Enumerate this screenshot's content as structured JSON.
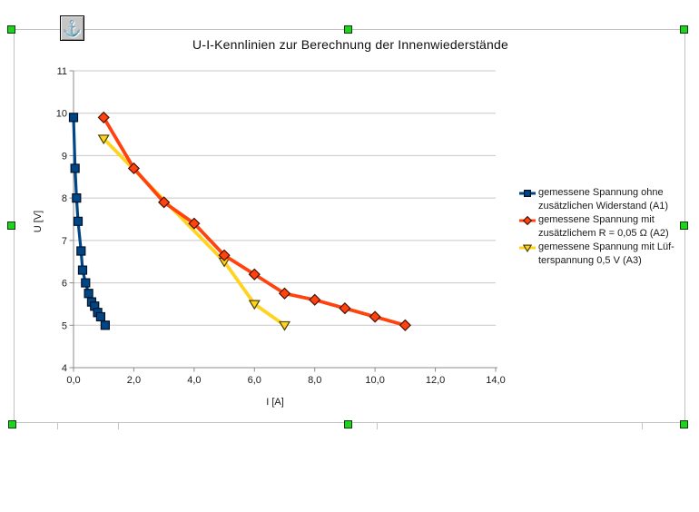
{
  "chart_object": {
    "selection_handle_color": "#1ed31e",
    "anchor_icon_glyph": "⚓",
    "background": "#ffffff",
    "axis_color": "#8c8c8c",
    "grid_color": "#c8c8c8",
    "text_color": "#1a1a1a"
  },
  "chart_data": {
    "type": "line",
    "title": "U-I-Kennlinien zur Berechnung der Innenwiederstände",
    "xlabel": "I [A]",
    "ylabel": "U [V]",
    "xlim": [
      0,
      14
    ],
    "ylim": [
      4,
      11
    ],
    "x_ticks": [
      "0,0",
      "2,0",
      "4,0",
      "6,0",
      "8,0",
      "10,0",
      "12,0",
      "14,0"
    ],
    "x_tick_values": [
      0,
      2,
      4,
      6,
      8,
      10,
      12,
      14
    ],
    "y_ticks": [
      "4",
      "5",
      "6",
      "7",
      "8",
      "9",
      "10",
      "11"
    ],
    "y_tick_values": [
      4,
      5,
      6,
      7,
      8,
      9,
      10,
      11
    ],
    "grid": "horizontal-only",
    "legend_position": "right",
    "series": [
      {
        "name": "gemessene Spannung ohne zusätzlichen Widerstand (A1)",
        "legend_lines": [
          "gemessene Spannung ohne",
          "zusätzlichen Widerstand (A1)"
        ],
        "color": "#004586",
        "marker": "square",
        "marker_border": "#001228",
        "points": [
          [
            0.0,
            9.9
          ],
          [
            0.05,
            8.7
          ],
          [
            0.1,
            8.0
          ],
          [
            0.15,
            7.45
          ],
          [
            0.25,
            6.75
          ],
          [
            0.3,
            6.3
          ],
          [
            0.4,
            6.0
          ],
          [
            0.5,
            5.75
          ],
          [
            0.6,
            5.55
          ],
          [
            0.7,
            5.45
          ],
          [
            0.8,
            5.3
          ],
          [
            0.9,
            5.2
          ],
          [
            1.05,
            5.0
          ]
        ]
      },
      {
        "name": "gemessene Spannung mit zusätzlichem R = 0,05 Ω (A2)",
        "legend_lines": [
          "gemessene Spannung mit",
          "zusätzlichem R = 0,05 Ω (A2)"
        ],
        "color": "#FF420E",
        "marker": "diamond",
        "marker_border": "#4a1203",
        "points": [
          [
            1,
            9.9
          ],
          [
            2,
            8.7
          ],
          [
            3,
            7.9
          ],
          [
            4,
            7.4
          ],
          [
            5,
            6.65
          ],
          [
            6,
            6.2
          ],
          [
            7,
            5.75
          ],
          [
            8,
            5.6
          ],
          [
            9,
            5.4
          ],
          [
            10,
            5.2
          ],
          [
            11,
            5.0
          ]
        ]
      },
      {
        "name": "gemessene Spannung mit Lüfterspannung 0,5 V (A3)",
        "legend_lines": [
          "gemessene Spannung mit Lüf-",
          "terspannung 0,5 V (A3)"
        ],
        "color": "#FFD320",
        "marker": "triangle-down",
        "marker_border": "#4d4100",
        "points": [
          [
            1,
            9.4
          ],
          [
            5,
            6.5
          ],
          [
            6,
            5.5
          ],
          [
            7,
            5.0
          ]
        ]
      }
    ]
  }
}
